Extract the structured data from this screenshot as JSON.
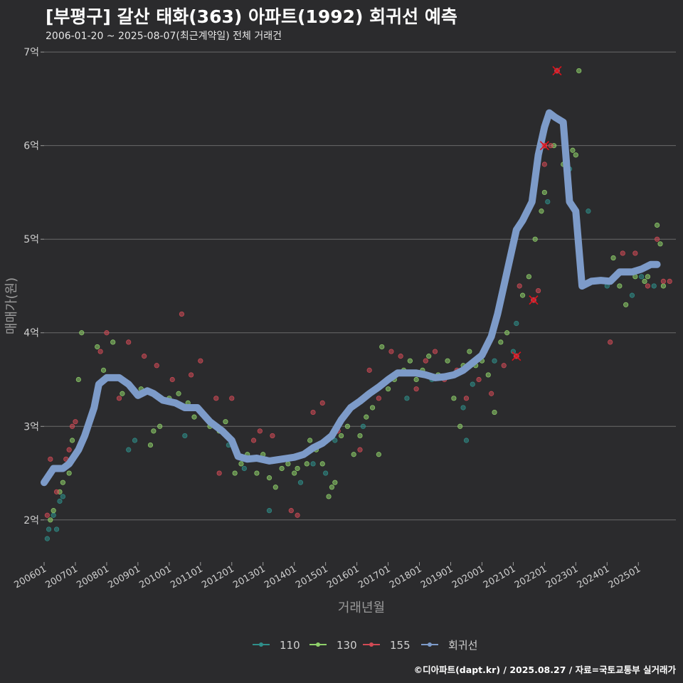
{
  "header": {
    "title": "[부평구] 갈산 태화(363) 아파트(1992) 회귀선 예측",
    "subtitle": "2006-01-20 ~ 2025-08-07(최근계약일) 전체 거래건"
  },
  "footer": {
    "credit": "©디아파트(dapt.kr) / 2025.08.27 / 자료=국토교통부 실거래가"
  },
  "colors": {
    "background": "#2b2b2d",
    "grid": "#6a6a6a",
    "s110": "#2f8f8a",
    "s130": "#8fd16a",
    "s155": "#d24a55",
    "regression": "#7d9bc9",
    "highlight": "#e0101a"
  },
  "chart_data": {
    "type": "scatter",
    "title": "[부평구] 갈산 태화(363) 아파트(1992) 회귀선 예측",
    "xlabel": "거래년월",
    "ylabel": "매매가(원)",
    "xlim": [
      2006.0,
      2026.2
    ],
    "ylim": [
      1.55,
      7.1
    ],
    "y_ticks": [
      2,
      3,
      4,
      5,
      6,
      7
    ],
    "y_tick_labels": [
      "2억",
      "3억",
      "4억",
      "5억",
      "6억",
      "7억"
    ],
    "x_ticks": [
      2006,
      2007,
      2008,
      2009,
      2010,
      2011,
      2012,
      2013,
      2014,
      2015,
      2016,
      2017,
      2018,
      2019,
      2020,
      2021,
      2022,
      2023,
      2024,
      2025
    ],
    "x_tick_labels": [
      "200601",
      "200701",
      "200801",
      "200901",
      "201001",
      "201101",
      "201201",
      "201301",
      "201401",
      "201501",
      "201601",
      "201701",
      "201801",
      "201901",
      "202001",
      "202101",
      "202201",
      "202301",
      "202401",
      "202501"
    ],
    "legend": {
      "placement": "bottom",
      "items": [
        "110",
        "130",
        "155",
        "회귀선"
      ]
    },
    "series": [
      {
        "name": "110",
        "points": [
          [
            2006.1,
            1.8
          ],
          [
            2006.15,
            1.9
          ],
          [
            2006.3,
            2.05
          ],
          [
            2006.4,
            1.9
          ],
          [
            2006.5,
            2.2
          ],
          [
            2006.6,
            2.25
          ],
          [
            2008.7,
            2.75
          ],
          [
            2008.9,
            2.85
          ],
          [
            2010.5,
            2.9
          ],
          [
            2011.9,
            2.8
          ],
          [
            2012.4,
            2.55
          ],
          [
            2013.2,
            2.1
          ],
          [
            2014.2,
            2.4
          ],
          [
            2014.6,
            2.6
          ],
          [
            2015.0,
            2.5
          ],
          [
            2015.3,
            2.85
          ],
          [
            2016.2,
            3.0
          ],
          [
            2017.6,
            3.3
          ],
          [
            2018.4,
            3.5
          ],
          [
            2019.4,
            3.2
          ],
          [
            2019.7,
            3.45
          ],
          [
            2020.4,
            3.7
          ],
          [
            2021.1,
            4.1
          ],
          [
            2022.1,
            5.4
          ],
          [
            2022.8,
            5.75
          ],
          [
            2023.4,
            5.3
          ],
          [
            2024.0,
            4.5
          ],
          [
            2024.8,
            4.4
          ],
          [
            2025.1,
            4.6
          ],
          [
            2025.5,
            4.5
          ],
          [
            2021.0,
            3.8
          ],
          [
            2019.5,
            2.85
          ]
        ]
      },
      {
        "name": "130",
        "points": [
          [
            2006.2,
            2.0
          ],
          [
            2006.3,
            2.1
          ],
          [
            2006.5,
            2.3
          ],
          [
            2006.6,
            2.4
          ],
          [
            2006.8,
            2.5
          ],
          [
            2007.1,
            3.5
          ],
          [
            2007.2,
            4.0
          ],
          [
            2007.7,
            3.85
          ],
          [
            2007.9,
            3.6
          ],
          [
            2008.2,
            3.9
          ],
          [
            2008.5,
            3.35
          ],
          [
            2009.1,
            3.4
          ],
          [
            2009.4,
            2.8
          ],
          [
            2009.5,
            2.95
          ],
          [
            2010.0,
            3.3
          ],
          [
            2010.3,
            3.35
          ],
          [
            2010.8,
            3.1
          ],
          [
            2011.3,
            3.0
          ],
          [
            2011.6,
            2.95
          ],
          [
            2011.8,
            3.05
          ],
          [
            2012.1,
            2.5
          ],
          [
            2012.3,
            2.6
          ],
          [
            2012.5,
            2.7
          ],
          [
            2012.8,
            2.5
          ],
          [
            2013.0,
            2.7
          ],
          [
            2013.2,
            2.45
          ],
          [
            2013.4,
            2.35
          ],
          [
            2013.6,
            2.55
          ],
          [
            2013.8,
            2.6
          ],
          [
            2014.0,
            2.5
          ],
          [
            2014.1,
            2.55
          ],
          [
            2014.3,
            2.7
          ],
          [
            2014.4,
            2.6
          ],
          [
            2014.5,
            2.85
          ],
          [
            2014.7,
            2.75
          ],
          [
            2014.9,
            2.6
          ],
          [
            2015.1,
            2.25
          ],
          [
            2015.2,
            2.35
          ],
          [
            2015.3,
            2.4
          ],
          [
            2015.5,
            2.9
          ],
          [
            2015.7,
            3.0
          ],
          [
            2015.9,
            2.7
          ],
          [
            2016.1,
            2.9
          ],
          [
            2016.3,
            3.1
          ],
          [
            2016.5,
            3.2
          ],
          [
            2016.7,
            2.7
          ],
          [
            2016.8,
            3.85
          ],
          [
            2017.0,
            3.4
          ],
          [
            2017.2,
            3.5
          ],
          [
            2017.5,
            3.6
          ],
          [
            2017.7,
            3.7
          ],
          [
            2017.9,
            3.5
          ],
          [
            2018.1,
            3.6
          ],
          [
            2018.3,
            3.75
          ],
          [
            2018.6,
            3.55
          ],
          [
            2018.9,
            3.7
          ],
          [
            2019.1,
            3.3
          ],
          [
            2019.3,
            3.0
          ],
          [
            2019.4,
            3.65
          ],
          [
            2019.6,
            3.8
          ],
          [
            2019.8,
            3.65
          ],
          [
            2020.0,
            3.7
          ],
          [
            2020.2,
            3.55
          ],
          [
            2020.4,
            3.15
          ],
          [
            2020.6,
            3.9
          ],
          [
            2020.8,
            4.0
          ],
          [
            2021.3,
            4.4
          ],
          [
            2021.5,
            4.6
          ],
          [
            2021.7,
            5.0
          ],
          [
            2021.9,
            5.3
          ],
          [
            2022.0,
            5.5
          ],
          [
            2022.3,
            6.0
          ],
          [
            2022.6,
            5.8
          ],
          [
            2022.9,
            5.95
          ],
          [
            2023.0,
            5.9
          ],
          [
            2023.1,
            6.8
          ],
          [
            2024.2,
            4.8
          ],
          [
            2024.4,
            4.5
          ],
          [
            2024.6,
            4.3
          ],
          [
            2024.9,
            4.6
          ],
          [
            2025.2,
            4.55
          ],
          [
            2025.3,
            4.6
          ],
          [
            2025.6,
            5.15
          ],
          [
            2025.7,
            4.95
          ],
          [
            2025.8,
            4.5
          ],
          [
            2013.1,
            2.65
          ],
          [
            2009.7,
            3.0
          ],
          [
            2010.6,
            3.25
          ],
          [
            2006.9,
            2.85
          ]
        ]
      },
      {
        "name": "155",
        "points": [
          [
            2006.1,
            2.05
          ],
          [
            2006.2,
            2.65
          ],
          [
            2006.4,
            2.3
          ],
          [
            2006.7,
            2.65
          ],
          [
            2006.8,
            2.75
          ],
          [
            2006.9,
            3.0
          ],
          [
            2007.0,
            3.05
          ],
          [
            2008.0,
            4.0
          ],
          [
            2008.4,
            3.3
          ],
          [
            2008.7,
            3.9
          ],
          [
            2009.2,
            3.75
          ],
          [
            2009.6,
            3.65
          ],
          [
            2010.1,
            3.5
          ],
          [
            2010.4,
            4.2
          ],
          [
            2010.7,
            3.55
          ],
          [
            2011.0,
            3.7
          ],
          [
            2011.5,
            3.3
          ],
          [
            2011.6,
            2.5
          ],
          [
            2012.0,
            3.3
          ],
          [
            2012.7,
            2.85
          ],
          [
            2013.3,
            2.9
          ],
          [
            2013.9,
            2.1
          ],
          [
            2014.1,
            2.05
          ],
          [
            2014.6,
            3.15
          ],
          [
            2014.9,
            3.25
          ],
          [
            2015.4,
            2.95
          ],
          [
            2015.8,
            3.2
          ],
          [
            2016.1,
            2.75
          ],
          [
            2016.4,
            3.6
          ],
          [
            2016.7,
            3.3
          ],
          [
            2017.1,
            3.8
          ],
          [
            2017.4,
            3.75
          ],
          [
            2017.9,
            3.4
          ],
          [
            2018.2,
            3.7
          ],
          [
            2018.5,
            3.8
          ],
          [
            2018.8,
            3.5
          ],
          [
            2019.2,
            3.6
          ],
          [
            2019.5,
            3.3
          ],
          [
            2019.9,
            3.5
          ],
          [
            2020.1,
            3.8
          ],
          [
            2020.3,
            3.35
          ],
          [
            2020.7,
            3.65
          ],
          [
            2021.2,
            4.5
          ],
          [
            2021.8,
            4.45
          ],
          [
            2022.0,
            5.8
          ],
          [
            2022.2,
            6.0
          ],
          [
            2024.1,
            3.9
          ],
          [
            2024.5,
            4.85
          ],
          [
            2024.9,
            4.85
          ],
          [
            2025.3,
            4.5
          ],
          [
            2025.6,
            5.0
          ],
          [
            2025.8,
            4.55
          ],
          [
            2026.0,
            4.55
          ],
          [
            2012.9,
            2.95
          ],
          [
            2007.8,
            3.8
          ]
        ]
      }
    ],
    "highlighted": [
      [
        2021.1,
        3.75
      ],
      [
        2021.65,
        4.35
      ],
      [
        2022.0,
        6.0
      ],
      [
        2022.4,
        6.8
      ]
    ],
    "regression": {
      "name": "회귀선",
      "points": [
        [
          2006.0,
          2.4
        ],
        [
          2006.3,
          2.55
        ],
        [
          2006.6,
          2.55
        ],
        [
          2006.8,
          2.6
        ],
        [
          2007.1,
          2.75
        ],
        [
          2007.3,
          2.9
        ],
        [
          2007.6,
          3.2
        ],
        [
          2007.75,
          3.45
        ],
        [
          2008.0,
          3.52
        ],
        [
          2008.4,
          3.52
        ],
        [
          2008.7,
          3.45
        ],
        [
          2009.0,
          3.33
        ],
        [
          2009.3,
          3.38
        ],
        [
          2009.5,
          3.35
        ],
        [
          2009.8,
          3.28
        ],
        [
          2010.2,
          3.25
        ],
        [
          2010.5,
          3.2
        ],
        [
          2010.9,
          3.2
        ],
        [
          2011.3,
          3.05
        ],
        [
          2011.7,
          2.95
        ],
        [
          2012.0,
          2.85
        ],
        [
          2012.2,
          2.68
        ],
        [
          2012.5,
          2.65
        ],
        [
          2012.8,
          2.66
        ],
        [
          2013.2,
          2.63
        ],
        [
          2013.6,
          2.65
        ],
        [
          2014.0,
          2.67
        ],
        [
          2014.3,
          2.7
        ],
        [
          2014.6,
          2.77
        ],
        [
          2014.9,
          2.82
        ],
        [
          2015.2,
          2.9
        ],
        [
          2015.5,
          3.07
        ],
        [
          2015.8,
          3.2
        ],
        [
          2016.1,
          3.27
        ],
        [
          2016.4,
          3.35
        ],
        [
          2016.7,
          3.42
        ],
        [
          2017.0,
          3.5
        ],
        [
          2017.3,
          3.57
        ],
        [
          2017.6,
          3.57
        ],
        [
          2017.9,
          3.57
        ],
        [
          2018.2,
          3.55
        ],
        [
          2018.5,
          3.52
        ],
        [
          2018.8,
          3.53
        ],
        [
          2019.1,
          3.55
        ],
        [
          2019.4,
          3.6
        ],
        [
          2019.7,
          3.68
        ],
        [
          2020.0,
          3.76
        ],
        [
          2020.3,
          3.96
        ],
        [
          2020.5,
          4.2
        ],
        [
          2020.7,
          4.5
        ],
        [
          2020.9,
          4.8
        ],
        [
          2021.1,
          5.1
        ],
        [
          2021.3,
          5.2
        ],
        [
          2021.6,
          5.4
        ],
        [
          2021.8,
          5.9
        ],
        [
          2022.0,
          6.2
        ],
        [
          2022.15,
          6.35
        ],
        [
          2022.35,
          6.3
        ],
        [
          2022.6,
          6.25
        ],
        [
          2022.8,
          5.4
        ],
        [
          2023.0,
          5.3
        ],
        [
          2023.2,
          4.5
        ],
        [
          2023.5,
          4.55
        ],
        [
          2023.8,
          4.56
        ],
        [
          2024.1,
          4.55
        ],
        [
          2024.4,
          4.65
        ],
        [
          2024.8,
          4.65
        ],
        [
          2025.1,
          4.68
        ],
        [
          2025.4,
          4.73
        ],
        [
          2025.6,
          4.73
        ]
      ]
    }
  }
}
